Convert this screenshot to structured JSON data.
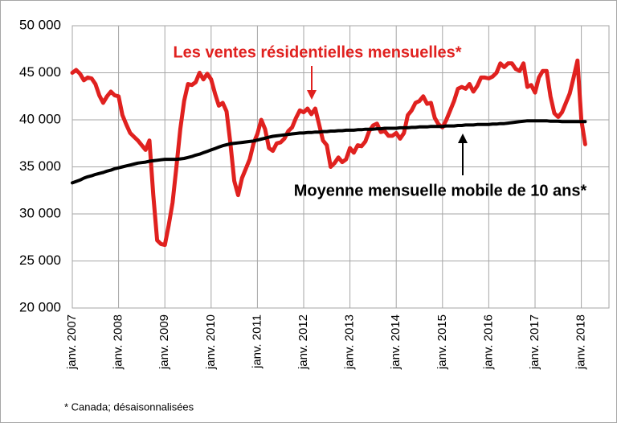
{
  "chart_data": {
    "type": "line",
    "categories": [
      "janv. 2007",
      null,
      null,
      null,
      null,
      null,
      null,
      null,
      null,
      null,
      null,
      null,
      "janv. 2008",
      null,
      null,
      null,
      null,
      null,
      null,
      null,
      null,
      null,
      null,
      null,
      "janv. 2009",
      null,
      null,
      null,
      null,
      null,
      null,
      null,
      null,
      null,
      null,
      null,
      "janv. 2010",
      null,
      null,
      null,
      null,
      null,
      null,
      null,
      null,
      null,
      null,
      null,
      "janv. 2011",
      null,
      null,
      null,
      null,
      null,
      null,
      null,
      null,
      null,
      null,
      null,
      "janv. 2012",
      null,
      null,
      null,
      null,
      null,
      null,
      null,
      null,
      null,
      null,
      null,
      "janv. 2013",
      null,
      null,
      null,
      null,
      null,
      null,
      null,
      null,
      null,
      null,
      null,
      "janv. 2014",
      null,
      null,
      null,
      null,
      null,
      null,
      null,
      null,
      null,
      null,
      null,
      "janv. 2015",
      null,
      null,
      null,
      null,
      null,
      null,
      null,
      null,
      null,
      null,
      null,
      "janv. 2016",
      null,
      null,
      null,
      null,
      null,
      null,
      null,
      null,
      null,
      null,
      null,
      "janv. 2017",
      null,
      null,
      null,
      null,
      null,
      null,
      null,
      null,
      null,
      null,
      null,
      "janv. 2018",
      null
    ],
    "series": [
      {
        "name": "Les ventes résidentielles mensuelles*",
        "color": "#e0211f",
        "values": [
          45000,
          45300,
          44900,
          44200,
          44500,
          44400,
          43800,
          42600,
          41800,
          42500,
          43000,
          42600,
          42500,
          40500,
          39500,
          38600,
          38200,
          37800,
          37300,
          36800,
          37800,
          32000,
          27200,
          26800,
          26700,
          28800,
          31200,
          35000,
          39000,
          42000,
          43800,
          43700,
          44000,
          45000,
          44300,
          44900,
          44300,
          42800,
          41500,
          41800,
          40900,
          37500,
          33500,
          32000,
          33800,
          34800,
          35800,
          37500,
          38500,
          40000,
          39000,
          37000,
          36700,
          37500,
          37600,
          38000,
          38800,
          39200,
          40200,
          41000,
          40800,
          41200,
          40600,
          41200,
          39500,
          37800,
          37300,
          35000,
          35400,
          36000,
          35500,
          35800,
          37000,
          36500,
          37300,
          37200,
          37700,
          38800,
          39400,
          39600,
          38700,
          38800,
          38300,
          38300,
          38600,
          38000,
          38600,
          40500,
          41000,
          41800,
          42000,
          42500,
          41700,
          41800,
          40200,
          39500,
          39200,
          40000,
          41000,
          42000,
          43300,
          43500,
          43300,
          43800,
          43000,
          43600,
          44500,
          44500,
          44400,
          44600,
          45000,
          46000,
          45600,
          46000,
          46000,
          45400,
          45200,
          46000,
          43500,
          43700,
          42900,
          44500,
          45200,
          45200,
          42500,
          40700,
          40300,
          40800,
          41800,
          42800,
          44500,
          46300,
          40000,
          37400
        ]
      },
      {
        "name": "Moyenne mensuelle mobile de 10 ans*",
        "color": "#000000",
        "values": [
          33300,
          33450,
          33600,
          33800,
          33950,
          34050,
          34200,
          34300,
          34400,
          34550,
          34650,
          34800,
          34900,
          35000,
          35100,
          35200,
          35300,
          35400,
          35450,
          35500,
          35600,
          35650,
          35700,
          35750,
          35800,
          35800,
          35800,
          35800,
          35850,
          35900,
          36000,
          36100,
          36250,
          36350,
          36500,
          36650,
          36800,
          36950,
          37100,
          37250,
          37350,
          37450,
          37500,
          37550,
          37600,
          37650,
          37700,
          37750,
          37850,
          37950,
          38050,
          38150,
          38250,
          38300,
          38350,
          38400,
          38450,
          38500,
          38550,
          38600,
          38600,
          38650,
          38650,
          38700,
          38700,
          38750,
          38750,
          38800,
          38800,
          38850,
          38850,
          38900,
          38900,
          38900,
          38950,
          38950,
          39000,
          39000,
          39000,
          39050,
          39050,
          39100,
          39100,
          39100,
          39100,
          39150,
          39150,
          39150,
          39200,
          39200,
          39250,
          39250,
          39250,
          39300,
          39300,
          39300,
          39300,
          39350,
          39350,
          39350,
          39400,
          39400,
          39450,
          39450,
          39450,
          39500,
          39500,
          39500,
          39500,
          39550,
          39550,
          39600,
          39600,
          39650,
          39700,
          39750,
          39800,
          39850,
          39900,
          39900,
          39900,
          39900,
          39900,
          39900,
          39850,
          39850,
          39850,
          39800,
          39800,
          39800,
          39800,
          39800,
          39800,
          39800
        ]
      }
    ],
    "ylim": [
      20000,
      50000
    ],
    "yticks": [
      {
        "value": 20000,
        "label": "20 000"
      },
      {
        "value": 25000,
        "label": "25 000"
      },
      {
        "value": 30000,
        "label": "30 000"
      },
      {
        "value": 35000,
        "label": "35 000"
      },
      {
        "value": 40000,
        "label": "40 000"
      },
      {
        "value": 45000,
        "label": "45 000"
      },
      {
        "value": 50000,
        "label": "50 000"
      }
    ],
    "grid": true,
    "footnote": "* Canada; désaisonnalisées"
  }
}
